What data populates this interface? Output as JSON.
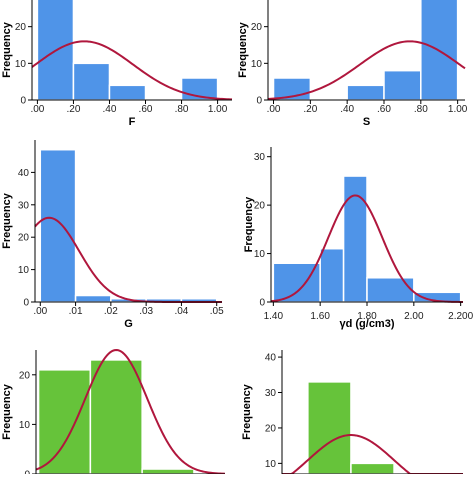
{
  "colors": {
    "blue_bar": "#4f94e8",
    "green_bar": "#66c33a",
    "curve": "#b0173d",
    "bar_stroke": "#ffffff"
  },
  "chart_data": [
    {
      "type": "bar",
      "xlabel": "F",
      "ylabel": "Frequency",
      "bar_color": "blue",
      "bins": [
        [
          0.0,
          0.2
        ],
        [
          0.2,
          0.4
        ],
        [
          0.4,
          0.6
        ],
        [
          0.6,
          0.8
        ],
        [
          0.8,
          1.0
        ]
      ],
      "values": [
        30,
        10,
        4,
        0,
        6
      ],
      "x_ticks": [
        ".00",
        ".20",
        ".40",
        ".60",
        ".80",
        "1.00"
      ],
      "xlim": [
        -0.03,
        1.08
      ],
      "y_ticks": [
        "0",
        "10",
        "20"
      ],
      "ylim": [
        0,
        30
      ],
      "normal_curve": {
        "mean": 0.26,
        "sd": 0.27,
        "peak": 16
      }
    },
    {
      "type": "bar",
      "xlabel": "S",
      "ylabel": "Frequency",
      "bar_color": "blue",
      "bins": [
        [
          0.0,
          0.2
        ],
        [
          0.2,
          0.4
        ],
        [
          0.4,
          0.6
        ],
        [
          0.6,
          0.8
        ],
        [
          0.8,
          1.0
        ]
      ],
      "values": [
        6,
        0,
        4,
        8,
        30
      ],
      "x_ticks": [
        ".00",
        ".20",
        ".40",
        ".60",
        ".80",
        "1.00"
      ],
      "xlim": [
        -0.03,
        1.04
      ],
      "y_ticks": [
        "0",
        "10",
        "20"
      ],
      "ylim": [
        0,
        30
      ],
      "normal_curve": {
        "mean": 0.74,
        "sd": 0.27,
        "peak": 16
      }
    },
    {
      "type": "bar",
      "xlabel": "G",
      "ylabel": "Frequency",
      "bar_color": "blue",
      "bins": [
        [
          0.0,
          0.01
        ],
        [
          0.01,
          0.02
        ],
        [
          0.02,
          0.03
        ],
        [
          0.03,
          0.04
        ],
        [
          0.04,
          0.05
        ]
      ],
      "values": [
        47,
        2,
        1,
        1,
        1
      ],
      "x_ticks": [
        ".00",
        ".01",
        ".02",
        ".03",
        ".04",
        ".05"
      ],
      "xlim": [
        -0.0015,
        0.0515
      ],
      "y_ticks": [
        "0",
        "10",
        "20",
        "30",
        "40"
      ],
      "ylim": [
        0,
        50
      ],
      "normal_curve": {
        "mean": 0.0025,
        "sd": 0.0085,
        "peak": 26
      }
    },
    {
      "type": "bar",
      "xlabel": "γd (g/cm3)",
      "ylabel": "Frequency",
      "bar_color": "blue",
      "bins": [
        [
          1.4,
          1.6
        ],
        [
          1.6,
          1.7
        ],
        [
          1.7,
          1.8
        ],
        [
          1.8,
          2.0
        ],
        [
          2.0,
          2.2
        ]
      ],
      "values": [
        8,
        11,
        26,
        5,
        2
      ],
      "x_ticks": [
        "1.40",
        "1.60",
        "1.80",
        "2.00",
        "2.200"
      ],
      "xlim": [
        1.39,
        2.21
      ],
      "y_ticks": [
        "0",
        "10",
        "20",
        "30"
      ],
      "ylim": [
        0,
        32
      ],
      "normal_curve": {
        "mean": 1.75,
        "sd": 0.115,
        "peak": 22
      }
    },
    {
      "type": "bar",
      "xlabel": "",
      "ylabel": "Frequency",
      "bar_color": "green",
      "bins": [
        [
          0.0,
          1.0
        ],
        [
          1.0,
          2.0
        ],
        [
          2.0,
          3.0
        ]
      ],
      "values": [
        21,
        23,
        1
      ],
      "x_ticks": [],
      "xlim": [
        -0.05,
        3.6
      ],
      "y_ticks": [
        "0",
        "10",
        "20"
      ],
      "ylim": [
        0,
        25
      ],
      "normal_curve": {
        "mean": 1.5,
        "sd": 0.6,
        "peak": 25
      }
    },
    {
      "type": "bar",
      "xlabel": "",
      "ylabel": "Frequency",
      "bar_color": "green",
      "bins": [
        [
          0.0,
          1.0
        ],
        [
          1.0,
          2.0
        ]
      ],
      "values": [
        33,
        10
      ],
      "x_ticks": [],
      "xlim": [
        -0.6,
        3.6
      ],
      "y_ticks": [
        "10",
        "20",
        "30",
        "40"
      ],
      "ylim": [
        7,
        42
      ],
      "normal_curve": {
        "mean": 1.0,
        "sd": 1.0,
        "peak": 18
      }
    }
  ]
}
